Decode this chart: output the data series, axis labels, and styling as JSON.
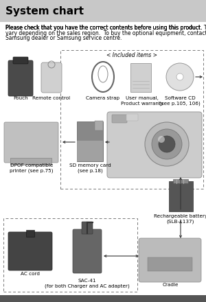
{
  "title": "System chart",
  "title_fontsize": 11,
  "body_text_normal": "Please check that you have the correct contents before using this product. ",
  "body_text_bold": "The contents can\nvary depending on the sales region.",
  "body_text_end": "  To buy the optional equipment, contact your nearest\nSamsung dealer or Samsung service centre.",
  "included_label": "< Included items >",
  "page_bg": "#ffffff",
  "title_bg": "#c8c8c8",
  "title_text_color": "#000000",
  "body_fontsize": 5.5,
  "label_fontsize": 5.2,
  "dashed_color": "#777777",
  "arrow_color": "#333333",
  "bottom_bar_color": "#555555"
}
